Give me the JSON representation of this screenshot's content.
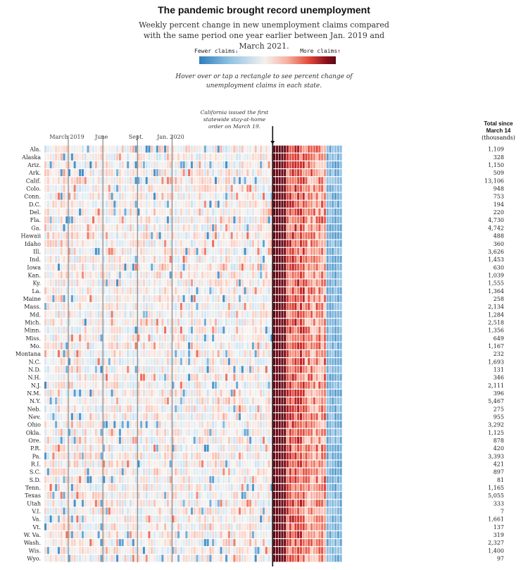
{
  "title": "The pandemic brought record unemployment",
  "subtitle": "Weekly percent change in new unemployment claims compared with the same period one year earlier between Jan. 2019 and March 2021.",
  "legend": {
    "fewer": "Fewer claims",
    "more": "More claims",
    "fewer_arrow": "↓",
    "more_arrow": "↑",
    "colors": [
      "#2d7fbf",
      "#8fc1e2",
      "#f4f1ef",
      "#f6b3a2",
      "#e44b3a",
      "#8d0f1f",
      "#5a0a14"
    ]
  },
  "hint": "Hover over or tap a rectangle to see percent change of unemployment claims in each state.",
  "annotation": "California issued the first statewide stay-at-home order on March 19.",
  "totals_header": {
    "line1": "Total since",
    "line2": "March 14",
    "unit": "(thousands)"
  },
  "chart_data": {
    "type": "heatmap",
    "x_axis": {
      "type": "weekly dates",
      "range": [
        "Jan. 2019",
        "March 2021"
      ],
      "tick_labels": [
        "March 2019",
        "June",
        "Sept.",
        "Jan. 2020"
      ]
    },
    "color_scale": "percent change in weekly new unemployment claims vs. one year earlier (blue = fewer, red = more)",
    "event": {
      "label": "statewide stay-at-home order",
      "date": "March 19, 2020"
    },
    "rows": [
      {
        "state": "Ala.",
        "total": "1,109"
      },
      {
        "state": "Alaska",
        "total": "328"
      },
      {
        "state": "Ariz.",
        "total": "1,150"
      },
      {
        "state": "Ark.",
        "total": "509"
      },
      {
        "state": "Calif.",
        "total": "13,106"
      },
      {
        "state": "Colo.",
        "total": "948"
      },
      {
        "state": "Conn.",
        "total": "753"
      },
      {
        "state": "D.C.",
        "total": "194"
      },
      {
        "state": "Del.",
        "total": "220"
      },
      {
        "state": "Fla.",
        "total": "4,730"
      },
      {
        "state": "Ga.",
        "total": "4,742"
      },
      {
        "state": "Hawaii",
        "total": "488"
      },
      {
        "state": "Idaho",
        "total": "360"
      },
      {
        "state": "Ill.",
        "total": "3,626"
      },
      {
        "state": "Ind.",
        "total": "1,453"
      },
      {
        "state": "Iowa",
        "total": "630"
      },
      {
        "state": "Kan.",
        "total": "1,039"
      },
      {
        "state": "Ky.",
        "total": "1,555"
      },
      {
        "state": "La.",
        "total": "1,364"
      },
      {
        "state": "Maine",
        "total": "258"
      },
      {
        "state": "Mass.",
        "total": "2,134"
      },
      {
        "state": "Md.",
        "total": "1,284"
      },
      {
        "state": "Mich.",
        "total": "2,518"
      },
      {
        "state": "Minn.",
        "total": "1,356"
      },
      {
        "state": "Miss.",
        "total": "649"
      },
      {
        "state": "Mo.",
        "total": "1,167"
      },
      {
        "state": "Montana",
        "total": "232"
      },
      {
        "state": "N.C.",
        "total": "1,693"
      },
      {
        "state": "N.D.",
        "total": "131"
      },
      {
        "state": "N.H.",
        "total": "346"
      },
      {
        "state": "N.J.",
        "total": "2,111"
      },
      {
        "state": "N.M.",
        "total": "396"
      },
      {
        "state": "N.Y.",
        "total": "5,467"
      },
      {
        "state": "Neb.",
        "total": "275"
      },
      {
        "state": "Nev.",
        "total": "955"
      },
      {
        "state": "Ohio",
        "total": "3,292"
      },
      {
        "state": "Okla.",
        "total": "1,125"
      },
      {
        "state": "Ore.",
        "total": "878"
      },
      {
        "state": "P.R.",
        "total": "420"
      },
      {
        "state": "Pa.",
        "total": "3,393"
      },
      {
        "state": "R.I.",
        "total": "421"
      },
      {
        "state": "S.C.",
        "total": "897"
      },
      {
        "state": "S.D.",
        "total": "81"
      },
      {
        "state": "Tenn.",
        "total": "1,165"
      },
      {
        "state": "Texas",
        "total": "5,055"
      },
      {
        "state": "Utah",
        "total": "333"
      },
      {
        "state": "V.I.",
        "total": "7"
      },
      {
        "state": "Va.",
        "total": "1,661"
      },
      {
        "state": "Vt.",
        "total": "137"
      },
      {
        "state": "W. Va.",
        "total": "319"
      },
      {
        "state": "Wash.",
        "total": "2,327"
      },
      {
        "state": "Wis.",
        "total": "1,400"
      },
      {
        "state": "Wyo.",
        "total": "97"
      }
    ]
  }
}
